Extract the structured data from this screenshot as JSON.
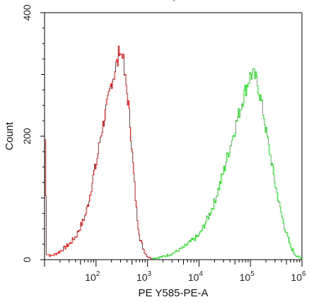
{
  "chart_data": {
    "type": "line",
    "title": "",
    "xlabel": "PE Y585-PE-A",
    "ylabel": "Count",
    "x_scale": "log",
    "xlim": [
      10,
      1000000
    ],
    "ylim": [
      0,
      400
    ],
    "x_ticks": [
      {
        "value": 100,
        "base": "10",
        "exp": "2"
      },
      {
        "value": 1000,
        "base": "10",
        "exp": "3"
      },
      {
        "value": 10000,
        "base": "10",
        "exp": "4"
      },
      {
        "value": 100000,
        "base": "10",
        "exp": "5"
      },
      {
        "value": 1000000,
        "base": "10",
        "exp": "6"
      }
    ],
    "y_ticks": [
      {
        "value": 0,
        "label": "0"
      },
      {
        "value": 200,
        "label": "200"
      },
      {
        "value": 400,
        "label": "400"
      }
    ],
    "grid": false,
    "legend": "none",
    "series": [
      {
        "color": "#e01010",
        "points": [
          [
            10,
            195
          ],
          [
            10.8,
            10
          ],
          [
            13,
            6
          ],
          [
            16,
            9
          ],
          [
            20,
            14
          ],
          [
            25,
            20
          ],
          [
            32,
            28
          ],
          [
            40,
            38
          ],
          [
            50,
            55
          ],
          [
            60,
            70
          ],
          [
            70,
            92
          ],
          [
            80,
            118
          ],
          [
            90,
            142
          ],
          [
            100,
            155
          ],
          [
            120,
            200
          ],
          [
            140,
            225
          ],
          [
            160,
            248
          ],
          [
            180,
            270
          ],
          [
            200,
            290
          ],
          [
            220,
            300
          ],
          [
            240,
            315
          ],
          [
            260,
            320
          ],
          [
            280,
            345
          ],
          [
            300,
            330
          ],
          [
            320,
            338
          ],
          [
            350,
            300
          ],
          [
            380,
            280
          ],
          [
            420,
            250
          ],
          [
            450,
            220
          ],
          [
            500,
            170
          ],
          [
            550,
            120
          ],
          [
            600,
            80
          ],
          [
            650,
            55
          ],
          [
            700,
            35
          ],
          [
            800,
            20
          ],
          [
            900,
            10
          ],
          [
            1000,
            5
          ],
          [
            1100,
            3
          ],
          [
            1200,
            2
          ]
        ]
      },
      {
        "color": "#22dd22",
        "points": [
          [
            1200,
            2
          ],
          [
            1500,
            3
          ],
          [
            2000,
            5
          ],
          [
            3000,
            10
          ],
          [
            5000,
            20
          ],
          [
            7000,
            30
          ],
          [
            10000,
            40
          ],
          [
            15000,
            70
          ],
          [
            20000,
            95
          ],
          [
            30000,
            145
          ],
          [
            40000,
            185
          ],
          [
            50000,
            215
          ],
          [
            60000,
            240
          ],
          [
            70000,
            260
          ],
          [
            80000,
            278
          ],
          [
            90000,
            290
          ],
          [
            100000,
            300
          ],
          [
            110000,
            298
          ],
          [
            120000,
            296
          ],
          [
            140000,
            280
          ],
          [
            160000,
            255
          ],
          [
            180000,
            232
          ],
          [
            200000,
            205
          ],
          [
            250000,
            160
          ],
          [
            300000,
            120
          ],
          [
            400000,
            70
          ],
          [
            500000,
            40
          ],
          [
            600000,
            20
          ],
          [
            700000,
            10
          ],
          [
            800000,
            5
          ],
          [
            900000,
            3
          ],
          [
            1000000,
            2
          ]
        ]
      }
    ]
  },
  "top_mark": "'"
}
